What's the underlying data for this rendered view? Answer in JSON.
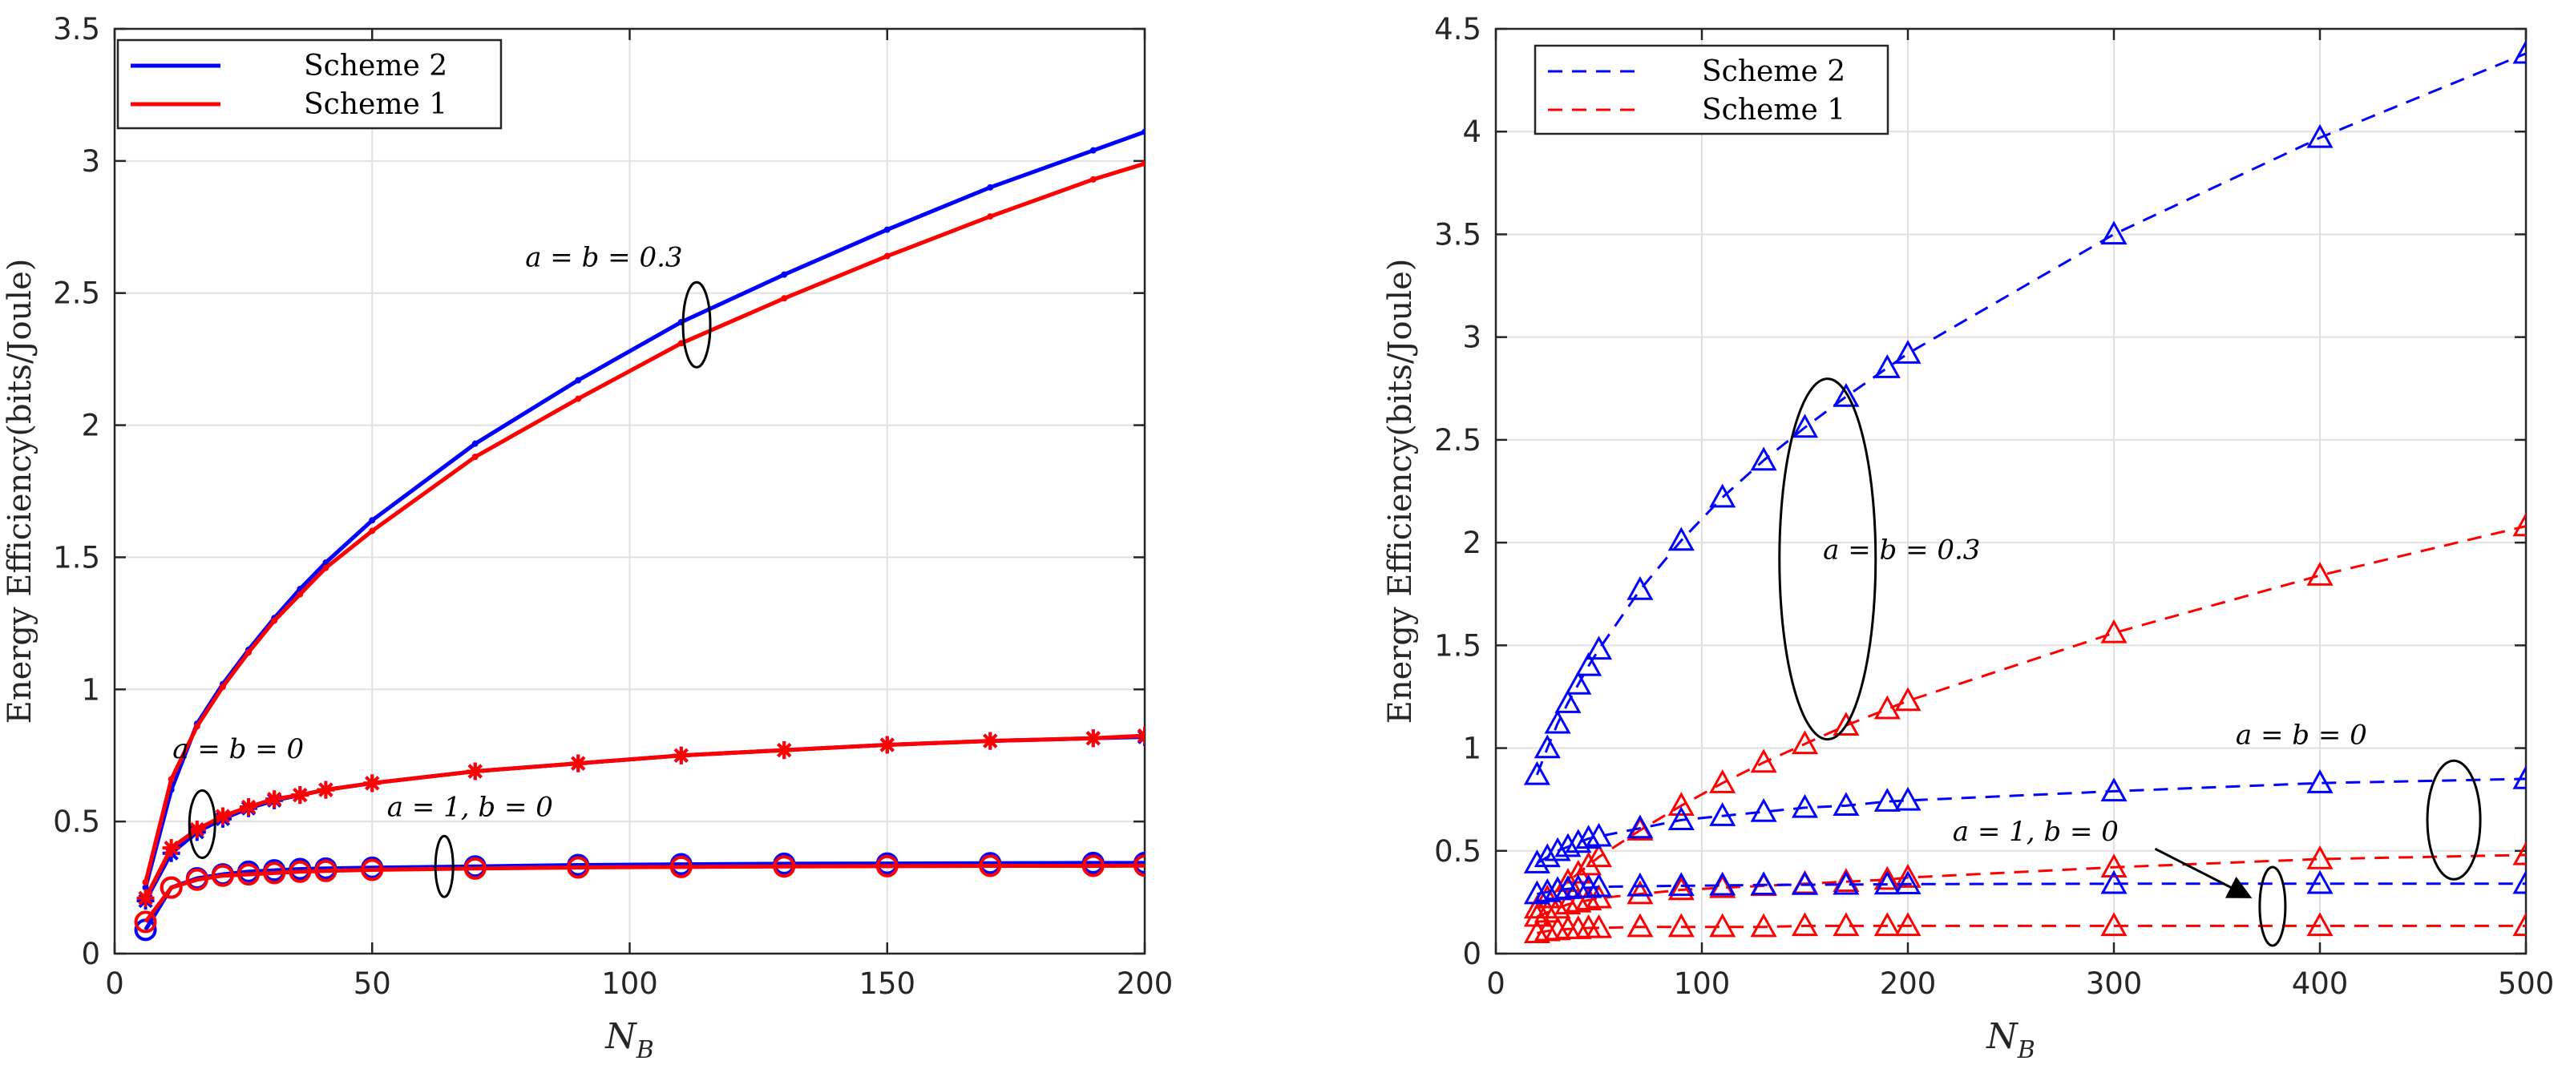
{
  "chart_data": [
    {
      "type": "line",
      "id": "left",
      "xlabel": "N",
      "xlabel_sub": "B",
      "ylabel": "Energy Efficiency(bits/Joule)",
      "xlim": [
        0,
        200
      ],
      "ylim": [
        0,
        3.5
      ],
      "xticks": [
        0,
        50,
        100,
        150,
        200
      ],
      "yticks": [
        0,
        0.5,
        1,
        1.5,
        2,
        2.5,
        3,
        3.5
      ],
      "grid": true,
      "legend": {
        "position": "top-left",
        "entries": [
          {
            "label": "Scheme 2",
            "color": "#0000FF",
            "style": "solid"
          },
          {
            "label": "Scheme 1",
            "color": "#FF0000",
            "style": "solid"
          }
        ]
      },
      "series": [
        {
          "name": "Scheme 2 (a = b = 0.3)",
          "color": "#0000FF",
          "dash": false,
          "marker": "dot",
          "x": [
            6,
            11,
            16,
            21,
            26,
            31,
            36,
            41,
            50,
            70,
            90,
            110,
            130,
            150,
            170,
            190,
            200
          ],
          "y": [
            0.25,
            0.62,
            0.87,
            1.02,
            1.15,
            1.27,
            1.38,
            1.48,
            1.64,
            1.93,
            2.17,
            2.39,
            2.57,
            2.74,
            2.9,
            3.04,
            3.11
          ]
        },
        {
          "name": "Scheme 1 (a = b = 0.3)",
          "color": "#FF0000",
          "dash": false,
          "marker": "dot",
          "x": [
            6,
            11,
            16,
            21,
            26,
            31,
            36,
            41,
            50,
            70,
            90,
            110,
            130,
            150,
            170,
            190,
            200
          ],
          "y": [
            0.27,
            0.66,
            0.86,
            1.01,
            1.14,
            1.26,
            1.36,
            1.46,
            1.6,
            1.88,
            2.1,
            2.31,
            2.48,
            2.64,
            2.79,
            2.93,
            2.99
          ]
        },
        {
          "name": "Scheme 2 (a = b = 0)",
          "color": "#0000FF",
          "dash": false,
          "marker": "star",
          "x": [
            6,
            11,
            16,
            21,
            26,
            31,
            36,
            41,
            50,
            70,
            90,
            110,
            130,
            150,
            170,
            190,
            200
          ],
          "y": [
            0.2,
            0.38,
            0.46,
            0.51,
            0.55,
            0.58,
            0.6,
            0.62,
            0.645,
            0.69,
            0.72,
            0.75,
            0.77,
            0.79,
            0.805,
            0.815,
            0.82
          ]
        },
        {
          "name": "Scheme 1 (a = b = 0)",
          "color": "#FF0000",
          "dash": false,
          "marker": "star",
          "x": [
            6,
            11,
            16,
            21,
            26,
            31,
            36,
            41,
            50,
            70,
            90,
            110,
            130,
            150,
            170,
            190,
            200
          ],
          "y": [
            0.21,
            0.4,
            0.47,
            0.52,
            0.555,
            0.585,
            0.6,
            0.62,
            0.645,
            0.69,
            0.72,
            0.75,
            0.77,
            0.79,
            0.805,
            0.815,
            0.825
          ]
        },
        {
          "name": "Scheme 2 (a = 1, b = 0)",
          "color": "#0000FF",
          "dash": false,
          "marker": "circle",
          "x": [
            6,
            11,
            16,
            21,
            26,
            31,
            36,
            41,
            50,
            70,
            90,
            110,
            130,
            150,
            170,
            190,
            200
          ],
          "y": [
            0.09,
            0.25,
            0.285,
            0.3,
            0.31,
            0.315,
            0.32,
            0.322,
            0.325,
            0.33,
            0.335,
            0.338,
            0.34,
            0.341,
            0.342,
            0.343,
            0.343
          ]
        },
        {
          "name": "Scheme 1 (a = 1, b = 0)",
          "color": "#FF0000",
          "dash": false,
          "marker": "circle",
          "x": [
            6,
            11,
            16,
            21,
            26,
            31,
            36,
            41,
            50,
            70,
            90,
            110,
            130,
            150,
            170,
            190,
            200
          ],
          "y": [
            0.12,
            0.25,
            0.28,
            0.295,
            0.3,
            0.305,
            0.31,
            0.313,
            0.317,
            0.322,
            0.326,
            0.328,
            0.33,
            0.331,
            0.332,
            0.332,
            0.333
          ]
        }
      ],
      "annotations": [
        {
          "text": "a = b = 0.3",
          "x": 95,
          "y": 2.6
        },
        {
          "text": "a = b = 0",
          "x": 24,
          "y": 0.74
        },
        {
          "text": "a = 1, b = 0",
          "x": 69,
          "y": 0.52
        }
      ]
    },
    {
      "type": "line",
      "id": "right",
      "xlabel": "N",
      "xlabel_sub": "B",
      "ylabel": "Energy Efficiency(bits/Joule)",
      "xlim": [
        0,
        500
      ],
      "ylim": [
        0,
        4.5
      ],
      "xticks": [
        0,
        100,
        200,
        300,
        400,
        500
      ],
      "yticks": [
        0,
        0.5,
        1,
        1.5,
        2,
        2.5,
        3,
        3.5,
        4,
        4.5
      ],
      "grid": true,
      "legend": {
        "position": "top-left",
        "entries": [
          {
            "label": "Scheme 2",
            "color": "#0000FF",
            "style": "dashed"
          },
          {
            "label": "Scheme 1",
            "color": "#FF0000",
            "style": "dashed"
          }
        ]
      },
      "series": [
        {
          "name": "Scheme 2 (a = b = 0.3)",
          "color": "#0000FF",
          "dash": true,
          "marker": "triangle",
          "x": [
            20,
            25,
            30,
            35,
            40,
            45,
            50,
            70,
            90,
            110,
            130,
            150,
            170,
            190,
            200,
            300,
            400,
            500
          ],
          "y": [
            0.87,
            1.0,
            1.12,
            1.22,
            1.31,
            1.4,
            1.48,
            1.77,
            2.01,
            2.22,
            2.4,
            2.56,
            2.71,
            2.85,
            2.92,
            3.5,
            3.97,
            4.38
          ]
        },
        {
          "name": "Scheme 1 (a = b = 0.3)",
          "color": "#FF0000",
          "dash": true,
          "marker": "triangle",
          "x": [
            20,
            25,
            30,
            35,
            40,
            45,
            50,
            70,
            90,
            110,
            130,
            150,
            170,
            190,
            200,
            300,
            400,
            500
          ],
          "y": [
            0.22,
            0.27,
            0.31,
            0.35,
            0.39,
            0.43,
            0.47,
            0.6,
            0.72,
            0.83,
            0.93,
            1.02,
            1.11,
            1.19,
            1.23,
            1.56,
            1.84,
            2.08
          ]
        },
        {
          "name": "Scheme 2 (a = b = 0)",
          "color": "#0000FF",
          "dash": true,
          "marker": "triangle",
          "x": [
            20,
            25,
            30,
            35,
            40,
            45,
            50,
            70,
            90,
            110,
            130,
            150,
            170,
            190,
            200,
            300,
            400,
            500
          ],
          "y": [
            0.44,
            0.47,
            0.5,
            0.52,
            0.54,
            0.56,
            0.57,
            0.61,
            0.65,
            0.67,
            0.69,
            0.71,
            0.72,
            0.74,
            0.745,
            0.79,
            0.83,
            0.85
          ]
        },
        {
          "name": "Scheme 1 (a = b = 0)",
          "color": "#FF0000",
          "dash": true,
          "marker": "triangle",
          "x": [
            20,
            25,
            30,
            35,
            40,
            45,
            50,
            70,
            90,
            110,
            130,
            150,
            170,
            190,
            200,
            300,
            400,
            500
          ],
          "y": [
            0.18,
            0.2,
            0.22,
            0.24,
            0.25,
            0.26,
            0.27,
            0.29,
            0.31,
            0.32,
            0.33,
            0.34,
            0.35,
            0.36,
            0.37,
            0.42,
            0.46,
            0.48
          ]
        },
        {
          "name": "Scheme 2 (a = 1, b = 0)",
          "color": "#0000FF",
          "dash": true,
          "marker": "triangle",
          "x": [
            20,
            25,
            30,
            35,
            40,
            45,
            50,
            70,
            90,
            110,
            130,
            150,
            170,
            190,
            200,
            300,
            400,
            500
          ],
          "y": [
            0.29,
            0.3,
            0.31,
            0.315,
            0.32,
            0.32,
            0.325,
            0.328,
            0.33,
            0.332,
            0.334,
            0.335,
            0.336,
            0.337,
            0.338,
            0.34,
            0.34,
            0.34
          ]
        },
        {
          "name": "Scheme 1 (a = 1, b = 0)",
          "color": "#FF0000",
          "dash": true,
          "marker": "triangle",
          "x": [
            20,
            25,
            30,
            35,
            40,
            45,
            50,
            70,
            90,
            110,
            130,
            150,
            170,
            190,
            200,
            300,
            400,
            500
          ],
          "y": [
            0.1,
            0.11,
            0.115,
            0.12,
            0.12,
            0.125,
            0.125,
            0.13,
            0.13,
            0.13,
            0.13,
            0.135,
            0.135,
            0.135,
            0.135,
            0.135,
            0.135,
            0.135
          ]
        }
      ],
      "annotations": [
        {
          "text": "a = b = 0.3",
          "x": 197,
          "y": 1.92
        },
        {
          "text": "a = b = 0",
          "x": 391,
          "y": 1.02
        },
        {
          "text": "a = 1, b = 0",
          "x": 262,
          "y": 0.55
        }
      ]
    }
  ]
}
